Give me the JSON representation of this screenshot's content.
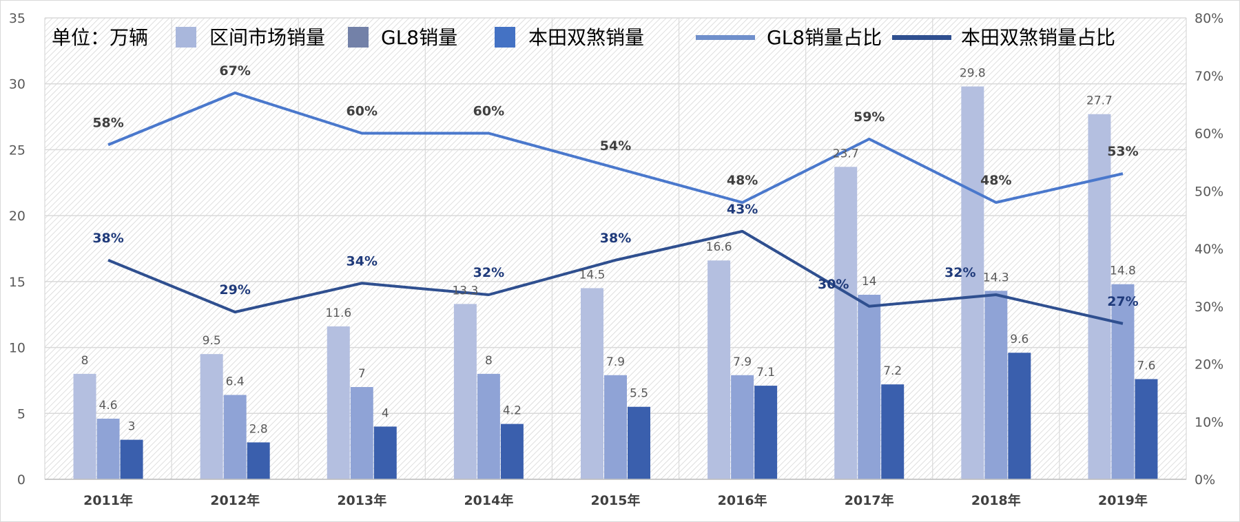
{
  "chart_data": {
    "type": "bar+line",
    "unit_label": "单位：万辆",
    "categories": [
      "2011年",
      "2012年",
      "2013年",
      "2014年",
      "2015年",
      "2016年",
      "2017年",
      "2018年",
      "2019年"
    ],
    "y_left": {
      "range": [
        0,
        35
      ],
      "ticks": [
        "0",
        "5",
        "10",
        "15",
        "20",
        "25",
        "30",
        "35"
      ]
    },
    "y_right": {
      "range": [
        0,
        80
      ],
      "ticks": [
        "0%",
        "10%",
        "20%",
        "30%",
        "40%",
        "50%",
        "60%",
        "70%",
        "80%"
      ]
    },
    "grid": true,
    "legend_position": "top",
    "series": [
      {
        "name": "区间市场销量",
        "kind": "bar",
        "axis": "left",
        "color": "#b4bfe0",
        "legend_color": "#a9b7dc",
        "values": [
          8,
          9.5,
          11.6,
          13.3,
          14.5,
          16.6,
          23.7,
          29.8,
          27.7
        ]
      },
      {
        "name": "GL8销量",
        "kind": "bar",
        "axis": "left",
        "color": "#8fa3d6",
        "legend_color": "#7381a8",
        "values": [
          4.6,
          6.4,
          7,
          8,
          7.9,
          7.9,
          14,
          14.3,
          14.8
        ]
      },
      {
        "name": "本田双煞销量",
        "kind": "bar",
        "axis": "left",
        "color": "#3a5fad",
        "legend_color": "#4472c4",
        "values": [
          3,
          2.8,
          4,
          4.2,
          5.5,
          7.1,
          7.2,
          9.6,
          7.6
        ]
      },
      {
        "name": "GL8销量占比",
        "kind": "line",
        "axis": "right",
        "color": "#4a78cc",
        "legend_color": "#6f8fcb",
        "values": [
          58,
          67,
          60,
          60,
          54,
          48,
          59,
          48,
          53
        ],
        "labels": [
          "58%",
          "67%",
          "60%",
          "60%",
          "54%",
          "48%",
          "59%",
          "48%",
          "53%"
        ]
      },
      {
        "name": "本田双煞销量占比",
        "kind": "line",
        "axis": "right",
        "color": "#2f4f8f",
        "legend_color": "#2f4f8f",
        "values": [
          38,
          29,
          34,
          32,
          38,
          43,
          30,
          32,
          27
        ],
        "labels": [
          "38%",
          "29%",
          "34%",
          "32%",
          "38%",
          "43%",
          "30%",
          "32%",
          "27%"
        ]
      }
    ]
  }
}
